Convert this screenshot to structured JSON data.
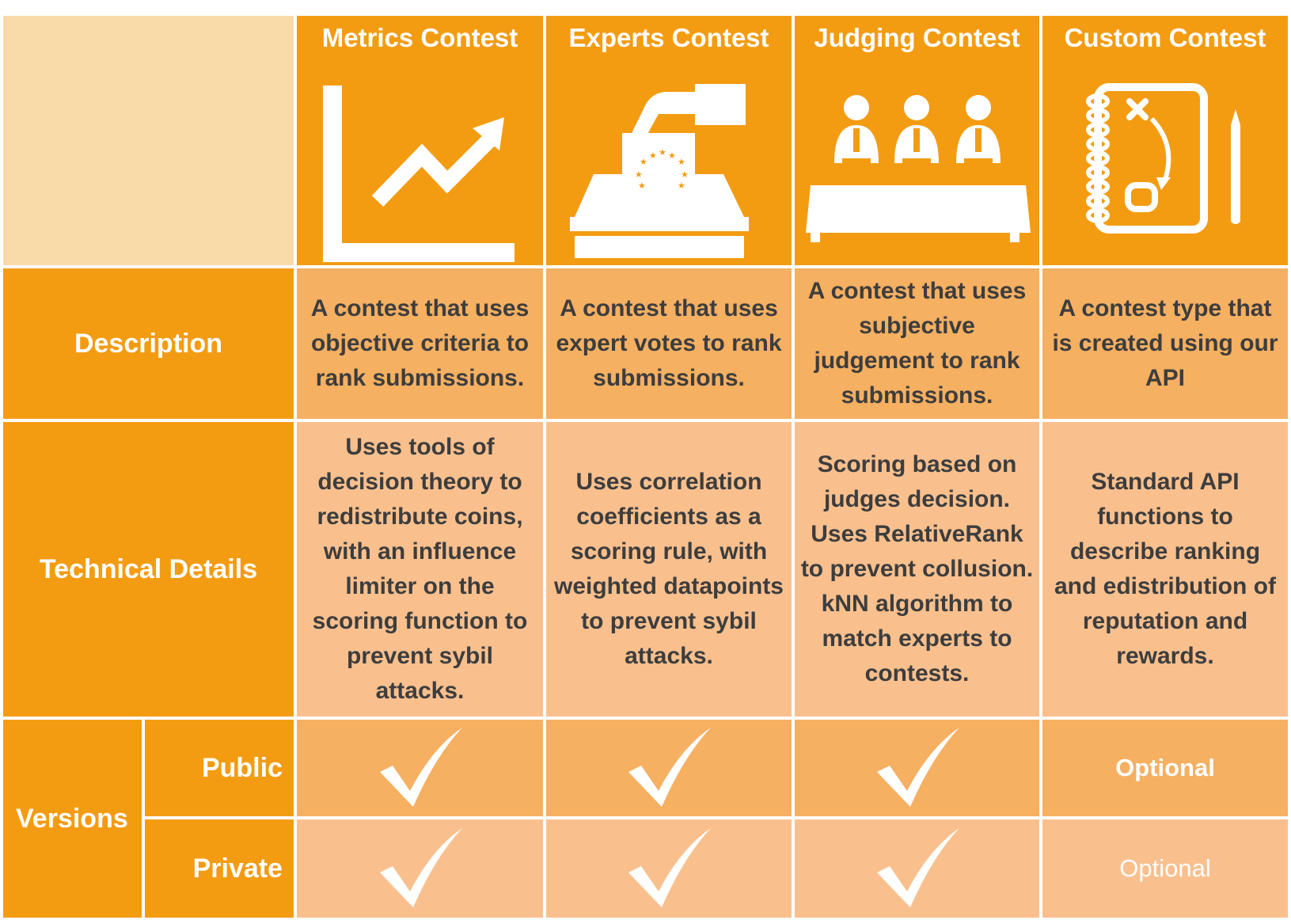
{
  "columns": [
    {
      "title": "Metrics Contest",
      "icon": "line-chart-up-icon"
    },
    {
      "title": "Experts Contest",
      "icon": "ballot-box-icon"
    },
    {
      "title": "Judging Contest",
      "icon": "judges-panel-icon"
    },
    {
      "title": "Custom Contest",
      "icon": "notebook-pencil-icon"
    }
  ],
  "rows": {
    "description": {
      "label": "Description",
      "cells": [
        "A contest that uses objective criteria to rank submissions.",
        "A contest that uses expert votes to rank submissions.",
        "A contest that uses subjective judgement to rank submissions.",
        "A contest type that is created using our API"
      ]
    },
    "technical": {
      "label": "Technical Details",
      "cells": [
        "Uses tools of decision theory to redistribute coins, with an influence limiter on the scoring function to prevent sybil attacks.",
        "Uses correlation coefficients as a scoring rule, with weighted datapoints to prevent sybil attacks.",
        "Scoring based on judges decision. Uses RelativeRank to prevent collusion. kNN algorithm to match experts to contests.",
        "Standard API functions to describe ranking and edistribution of reputation and rewards."
      ]
    },
    "versions": {
      "label": "Versions",
      "public": {
        "label": "Public",
        "custom_value": "Optional"
      },
      "private": {
        "label": "Private",
        "custom_value": "Optional"
      },
      "check_icon": "checkmark-icon"
    }
  },
  "colors": {
    "orange": "#f39c12",
    "header_empty": "#f8dba9",
    "description_bg": "#f5b062",
    "technical_bg": "#f9c08e",
    "text_dark": "#3d3d3d",
    "white": "#ffffff"
  }
}
